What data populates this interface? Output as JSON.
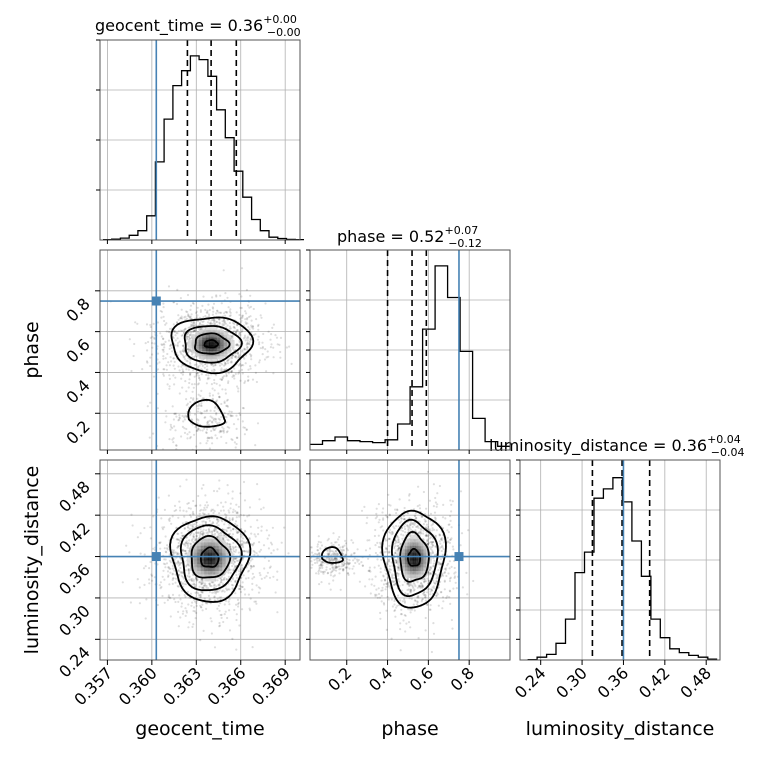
{
  "chart_data": {
    "type": "corner",
    "parameters": [
      "geocent_time",
      "phase",
      "luminosity_distance"
    ],
    "titles": [
      {
        "name": "geocent_time",
        "median": "0.36",
        "plus": "+0.00",
        "minus": "−0.00"
      },
      {
        "name": "phase",
        "median": "0.52",
        "plus": "+0.07",
        "minus": "−0.12"
      },
      {
        "name": "luminosity_distance",
        "median": "0.36",
        "plus": "+0.04",
        "minus": "−0.04"
      }
    ],
    "axis_labels": {
      "bottom": [
        "geocent_time",
        "phase",
        "luminosity_distance"
      ],
      "left": [
        "phase",
        "luminosity_distance"
      ]
    },
    "ranges": {
      "geocent_time": [
        0.3565,
        0.37
      ],
      "phase": [
        0.02,
        1.0
      ],
      "luminosity_distance": [
        0.21,
        0.5
      ]
    },
    "ticks": {
      "geocent_time": [
        "0.357",
        "0.360",
        "0.363",
        "0.366",
        "0.369"
      ],
      "phase": [
        "0.2",
        "0.4",
        "0.6",
        "0.8"
      ],
      "luminosity_distance": [
        "0.24",
        "0.30",
        "0.36",
        "0.42",
        "0.48"
      ]
    },
    "truths": {
      "geocent_time": 0.3603,
      "phase": 0.75,
      "luminosity_distance": 0.36
    },
    "quantiles": {
      "geocent_time": [
        0.3624,
        0.364,
        0.3657
      ],
      "phase": [
        0.4,
        0.52,
        0.59
      ],
      "luminosity_distance": [
        0.315,
        0.358,
        0.398
      ]
    },
    "histograms": {
      "geocent_time": {
        "x_start": 0.3567,
        "bin_width": 0.00059,
        "counts": [
          0.002,
          0.005,
          0.01,
          0.025,
          0.05,
          0.13,
          0.42,
          0.65,
          0.83,
          0.91,
          0.99,
          0.97,
          0.88,
          0.7,
          0.55,
          0.37,
          0.23,
          0.11,
          0.05,
          0.015,
          0.008,
          0.003,
          0.002
        ]
      },
      "phase": {
        "x_start": 0.02,
        "bin_width": 0.0613,
        "counts": [
          0.03,
          0.05,
          0.07,
          0.05,
          0.045,
          0.04,
          0.055,
          0.14,
          0.34,
          0.65,
          0.99,
          0.82,
          0.53,
          0.17,
          0.045,
          0.02
        ]
      },
      "luminosity_distance": {
        "x_start": 0.221,
        "bin_width": 0.01375,
        "counts": [
          0.002,
          0.015,
          0.03,
          0.09,
          0.22,
          0.47,
          0.58,
          0.87,
          0.92,
          0.98,
          0.85,
          0.64,
          0.45,
          0.22,
          0.12,
          0.06,
          0.04,
          0.025,
          0.015,
          0.005
        ]
      }
    },
    "joint_modes": [
      {
        "x": "geocent_time",
        "y": "phase",
        "center": [
          0.364,
          0.54
        ],
        "spread": [
          0.0013,
          0.07
        ],
        "contours_main": [
          [
            0.00045,
            0.018
          ],
          [
            0.00115,
            0.05
          ],
          [
            0.0019,
            0.09
          ],
          [
            0.0027,
            0.135
          ]
        ],
        "secondary": {
          "center": [
            0.3637,
            0.17
          ],
          "radii": [
            0.0012,
            0.08
          ]
        }
      },
      {
        "x": "geocent_time",
        "y": "luminosity_distance",
        "center": [
          0.3639,
          0.358
        ],
        "spread": [
          0.0013,
          0.028
        ],
        "contours_main": [
          [
            0.0006,
            0.014
          ],
          [
            0.0013,
            0.03
          ],
          [
            0.002,
            0.047
          ],
          [
            0.0026,
            0.062
          ]
        ]
      },
      {
        "x": "phase",
        "y": "luminosity_distance",
        "center": [
          0.53,
          0.358
        ],
        "spread": [
          0.07,
          0.028
        ],
        "contours_main": [
          [
            0.03,
            0.012
          ],
          [
            0.07,
            0.035
          ],
          [
            0.11,
            0.054
          ],
          [
            0.15,
            0.07
          ]
        ],
        "secondary": {
          "center": [
            0.13,
            0.357
          ],
          "radii": [
            0.05,
            0.014
          ]
        }
      }
    ]
  }
}
